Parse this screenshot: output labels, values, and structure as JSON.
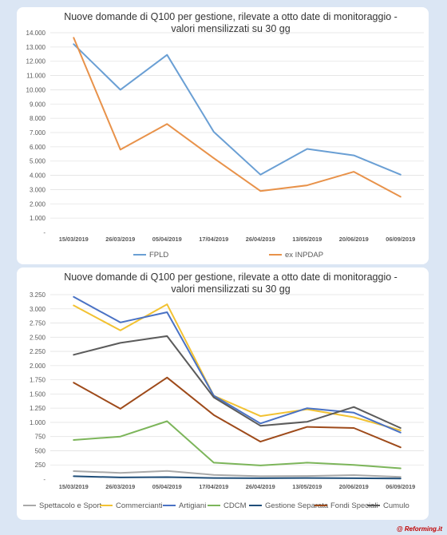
{
  "footer": {
    "credit": "@ Reforming.it"
  },
  "chart_data": [
    {
      "type": "line",
      "title": "Nuove domande di Q100 per gestione, rilevate a otto date di monitoraggio - valori mensilizzati su 30 gg",
      "title_lines": [
        "Nuove domande di Q100 per gestione, rilevate a otto date di monitoraggio -",
        "valori mensilizzati su 30 gg"
      ],
      "categories": [
        "15/03/2019",
        "26/03/2019",
        "05/04/2019",
        "17/04/2019",
        "26/04/2019",
        "13/05/2019",
        "20/06/2019",
        "06/09/2019"
      ],
      "y_ticks": [
        "-",
        "1.000",
        "2.000",
        "3.000",
        "4.000",
        "5.000",
        "6.000",
        "7.000",
        "8.000",
        "9.000",
        "10.000",
        "11.000",
        "12.000",
        "13.000",
        "14.000"
      ],
      "ylim": [
        0,
        14000
      ],
      "grid": true,
      "legend_position": "bottom",
      "series": [
        {
          "name": "FPLD",
          "color": "#6a9fd4",
          "values": [
            13200,
            10000,
            12450,
            7050,
            4050,
            5850,
            5400,
            4050
          ]
        },
        {
          "name": "ex INPDAP",
          "color": "#e8924a",
          "values": [
            13650,
            5800,
            7600,
            5200,
            2900,
            3300,
            4250,
            2500
          ]
        }
      ]
    },
    {
      "type": "line",
      "title": "Nuove domande di Q100 per gestione, rilevate a otto date di monitoraggio - valori mensilizzati su 30 gg",
      "title_lines": [
        "Nuove domande di Q100 per gestione, rilevate a otto date di monitoraggio -",
        "valori mensilizzati su 30 gg"
      ],
      "categories": [
        "15/03/2019",
        "26/03/2019",
        "05/04/2019",
        "17/04/2019",
        "26/04/2019",
        "13/05/2019",
        "20/06/2019",
        "06/09/2019"
      ],
      "y_ticks": [
        "-",
        "250",
        "500",
        "750",
        "1.000",
        "1.250",
        "1.500",
        "1.750",
        "2.000",
        "2.250",
        "2.500",
        "2.750",
        "3.000",
        "3.250"
      ],
      "ylim": [
        0,
        3250
      ],
      "grid": true,
      "legend_position": "bottom",
      "series": [
        {
          "name": "Spettacolo e Sport",
          "color": "#a9a9a9",
          "values": [
            140,
            110,
            145,
            75,
            50,
            55,
            70,
            40
          ]
        },
        {
          "name": "Commercianti",
          "color": "#f2c232",
          "values": [
            3060,
            2620,
            3080,
            1470,
            1110,
            1230,
            1090,
            860
          ]
        },
        {
          "name": "Artigiani",
          "color": "#4a72c4",
          "values": [
            3210,
            2760,
            2940,
            1470,
            980,
            1250,
            1170,
            820
          ]
        },
        {
          "name": "CDCM",
          "color": "#7cb55a",
          "values": [
            690,
            750,
            1020,
            290,
            240,
            290,
            250,
            190
          ]
        },
        {
          "name": "Gestione Separata",
          "color": "#1f4e79",
          "values": [
            50,
            30,
            35,
            20,
            15,
            20,
            15,
            10
          ]
        },
        {
          "name": "Fondi Speciali",
          "color": "#9e4a1a",
          "values": [
            1700,
            1240,
            1790,
            1130,
            660,
            920,
            900,
            560
          ]
        },
        {
          "name": "Cumulo",
          "color": "#5b5b5b",
          "values": [
            2190,
            2400,
            2520,
            1440,
            940,
            1010,
            1270,
            900
          ]
        }
      ]
    }
  ]
}
